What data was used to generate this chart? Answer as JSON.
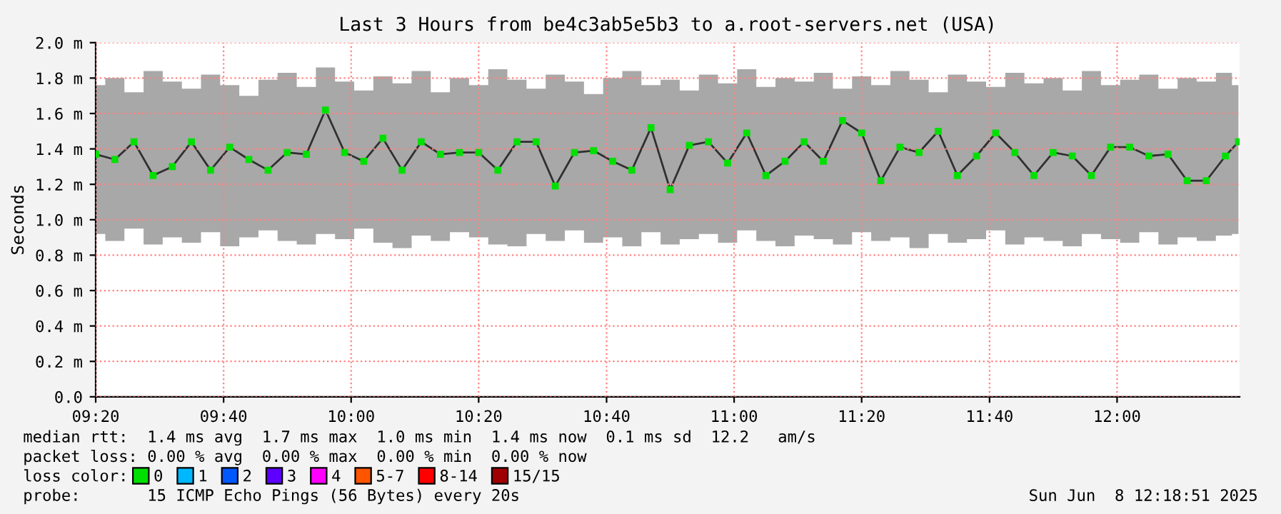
{
  "chart_data": {
    "type": "line",
    "title": "Last 3 Hours from be4c3ab5e5b3 to a.root-servers.net (USA)",
    "ylabel": "Seconds",
    "x": [
      9.333,
      9.383,
      9.433,
      9.483,
      9.533,
      9.583,
      9.633,
      9.683,
      9.733,
      9.783,
      9.833,
      9.883,
      9.933,
      9.983,
      10.033,
      10.083,
      10.133,
      10.183,
      10.233,
      10.283,
      10.333,
      10.383,
      10.433,
      10.483,
      10.533,
      10.583,
      10.633,
      10.683,
      10.733,
      10.783,
      10.833,
      10.883,
      10.933,
      10.983,
      11.033,
      11.083,
      11.133,
      11.183,
      11.233,
      11.283,
      11.333,
      11.383,
      11.433,
      11.483,
      11.533,
      11.583,
      11.633,
      11.683,
      11.733,
      11.783,
      11.833,
      11.883,
      11.933,
      11.983,
      12.033,
      12.083,
      12.133,
      12.183,
      12.233,
      12.283,
      12.317
    ],
    "series": [
      {
        "name": "0",
        "color": "#00e000",
        "values": [
          1.37,
          1.34,
          1.44,
          1.25,
          1.3,
          1.44,
          1.28,
          1.41,
          1.34,
          1.28,
          1.38,
          1.37,
          1.62,
          1.38,
          1.33,
          1.46,
          1.28,
          1.44,
          1.37,
          1.38,
          1.38,
          1.28,
          1.44,
          1.44,
          1.19,
          1.38,
          1.39,
          1.33,
          1.28,
          1.52,
          1.17,
          1.42,
          1.44,
          1.32,
          1.49,
          1.25,
          1.33,
          1.44,
          1.33,
          1.56,
          1.49,
          1.22,
          1.41,
          1.38,
          1.5,
          1.25,
          1.36,
          1.49,
          1.38,
          1.25,
          1.38,
          1.36,
          1.25,
          1.41,
          1.41,
          1.36,
          1.37,
          1.22,
          1.22,
          1.36,
          1.44
        ],
        "lower": [
          0.92,
          0.88,
          0.95,
          0.86,
          0.9,
          0.87,
          0.93,
          0.85,
          0.9,
          0.94,
          0.88,
          0.86,
          0.92,
          0.89,
          0.95,
          0.87,
          0.84,
          0.91,
          0.88,
          0.93,
          0.9,
          0.86,
          0.85,
          0.92,
          0.88,
          0.94,
          0.87,
          0.9,
          0.85,
          0.93,
          0.86,
          0.89,
          0.92,
          0.87,
          0.94,
          0.88,
          0.85,
          0.91,
          0.89,
          0.86,
          0.93,
          0.88,
          0.9,
          0.84,
          0.92,
          0.87,
          0.89,
          0.94,
          0.86,
          0.9,
          0.88,
          0.85,
          0.92,
          0.89,
          0.87,
          0.93,
          0.86,
          0.9,
          0.88,
          0.91,
          0.92
        ],
        "upper": [
          1.76,
          1.8,
          1.72,
          1.84,
          1.78,
          1.74,
          1.82,
          1.76,
          1.7,
          1.79,
          1.83,
          1.75,
          1.86,
          1.78,
          1.73,
          1.81,
          1.77,
          1.84,
          1.72,
          1.8,
          1.76,
          1.85,
          1.79,
          1.74,
          1.82,
          1.78,
          1.71,
          1.8,
          1.84,
          1.76,
          1.79,
          1.73,
          1.82,
          1.77,
          1.85,
          1.75,
          1.8,
          1.78,
          1.83,
          1.74,
          1.81,
          1.76,
          1.84,
          1.79,
          1.72,
          1.82,
          1.78,
          1.75,
          1.83,
          1.77,
          1.8,
          1.73,
          1.84,
          1.76,
          1.79,
          1.82,
          1.74,
          1.8,
          1.78,
          1.83,
          1.76
        ]
      },
      {
        "name": "1",
        "color": "#00b8ff",
        "values": [
          null,
          null,
          null,
          null,
          null,
          null,
          null,
          null,
          null,
          null,
          null,
          null,
          null,
          null,
          null,
          null,
          null,
          null,
          null,
          null,
          null,
          null,
          null,
          null,
          null,
          null,
          null,
          null,
          null,
          null,
          null,
          null,
          null,
          null,
          null,
          null,
          null,
          null,
          null,
          null,
          null,
          null,
          null,
          null,
          null,
          null,
          null,
          null,
          null,
          null,
          null,
          null,
          null,
          null,
          null,
          null,
          null,
          null,
          null,
          null,
          null
        ]
      },
      {
        "name": "2",
        "color": "#0059ff",
        "values": [
          null,
          null,
          null,
          null,
          null,
          null,
          null,
          null,
          null,
          null,
          null,
          null,
          null,
          null,
          null,
          null,
          null,
          null,
          null,
          null,
          null,
          null,
          null,
          null,
          null,
          null,
          null,
          null,
          null,
          null,
          null,
          null,
          null,
          null,
          null,
          null,
          null,
          null,
          null,
          null,
          null,
          null,
          null,
          null,
          null,
          null,
          null,
          null,
          null,
          null,
          null,
          null,
          null,
          null,
          null,
          null,
          null,
          null,
          null,
          null,
          null
        ]
      },
      {
        "name": "3",
        "color": "#5e00ff",
        "values": [
          null,
          null,
          null,
          null,
          null,
          null,
          null,
          null,
          null,
          null,
          null,
          null,
          null,
          null,
          null,
          null,
          null,
          null,
          null,
          null,
          null,
          null,
          null,
          null,
          null,
          null,
          null,
          null,
          null,
          null,
          null,
          null,
          null,
          null,
          null,
          null,
          null,
          null,
          null,
          null,
          null,
          null,
          null,
          null,
          null,
          null,
          null,
          null,
          null,
          null,
          null,
          null,
          null,
          null,
          null,
          null,
          null,
          null,
          null,
          null,
          null
        ]
      },
      {
        "name": "4",
        "color": "#ff00ff",
        "values": [
          null,
          null,
          null,
          null,
          null,
          null,
          null,
          null,
          null,
          null,
          null,
          null,
          null,
          null,
          null,
          null,
          null,
          null,
          null,
          null,
          null,
          null,
          null,
          null,
          null,
          null,
          null,
          null,
          null,
          null,
          null,
          null,
          null,
          null,
          null,
          null,
          null,
          null,
          null,
          null,
          null,
          null,
          null,
          null,
          null,
          null,
          null,
          null,
          null,
          null,
          null,
          null,
          null,
          null,
          null,
          null,
          null,
          null,
          null,
          null,
          null
        ]
      },
      {
        "name": "5-7",
        "color": "#ff5500",
        "values": [
          null,
          null,
          null,
          null,
          null,
          null,
          null,
          null,
          null,
          null,
          null,
          null,
          null,
          null,
          null,
          null,
          null,
          null,
          null,
          null,
          null,
          null,
          null,
          null,
          null,
          null,
          null,
          null,
          null,
          null,
          null,
          null,
          null,
          null,
          null,
          null,
          null,
          null,
          null,
          null,
          null,
          null,
          null,
          null,
          null,
          null,
          null,
          null,
          null,
          null,
          null,
          null,
          null,
          null,
          null,
          null,
          null,
          null,
          null,
          null,
          null
        ]
      },
      {
        "name": "8-14",
        "color": "#ff0000",
        "values": [
          null,
          null,
          null,
          null,
          null,
          null,
          null,
          null,
          null,
          null,
          null,
          null,
          null,
          null,
          null,
          null,
          null,
          null,
          null,
          null,
          null,
          null,
          null,
          null,
          null,
          null,
          null,
          null,
          null,
          null,
          null,
          null,
          null,
          null,
          null,
          null,
          null,
          null,
          null,
          null,
          null,
          null,
          null,
          null,
          null,
          null,
          null,
          null,
          null,
          null,
          null,
          null,
          null,
          null,
          null,
          null,
          null,
          null,
          null,
          null,
          null
        ]
      },
      {
        "name": "15/15",
        "color": "#a10000",
        "values": [
          null,
          null,
          null,
          null,
          null,
          null,
          null,
          null,
          null,
          null,
          null,
          null,
          null,
          null,
          null,
          null,
          null,
          null,
          null,
          null,
          null,
          null,
          null,
          null,
          null,
          null,
          null,
          null,
          null,
          null,
          null,
          null,
          null,
          null,
          null,
          null,
          null,
          null,
          null,
          null,
          null,
          null,
          null,
          null,
          null,
          null,
          null,
          null,
          null,
          null,
          null,
          null,
          null,
          null,
          null,
          null,
          null,
          null,
          null,
          null,
          null
        ]
      }
    ],
    "legend": "bottom",
    "legend_title": "loss color:",
    "xlim": [
      9.333,
      12.32
    ],
    "xticks": [
      {
        "value": 9.333,
        "label": "09:20"
      },
      {
        "value": 9.667,
        "label": "09:40"
      },
      {
        "value": 10,
        "label": "10:00"
      },
      {
        "value": 10.333,
        "label": "10:20"
      },
      {
        "value": 10.667,
        "label": "10:40"
      },
      {
        "value": 11,
        "label": "11:00"
      },
      {
        "value": 11.333,
        "label": "11:20"
      },
      {
        "value": 11.667,
        "label": "11:40"
      },
      {
        "value": 12,
        "label": "12:00"
      }
    ],
    "ylim": [
      0,
      2.0
    ],
    "yticks": [
      {
        "value": 0,
        "label": "0.0"
      },
      {
        "value": 0.2,
        "label": "0.2 m"
      },
      {
        "value": 0.4,
        "label": "0.4 m"
      },
      {
        "value": 0.6,
        "label": "0.6 m"
      },
      {
        "value": 0.8,
        "label": "0.8 m"
      },
      {
        "value": 1.0,
        "label": "1.0 m"
      },
      {
        "value": 1.2,
        "label": "1.2 m"
      },
      {
        "value": 1.4,
        "label": "1.4 m"
      },
      {
        "value": 1.6,
        "label": "1.6 m"
      },
      {
        "value": 1.8,
        "label": "1.8 m"
      },
      {
        "value": 2.0,
        "label": "2.0 m"
      }
    ],
    "grid": true,
    "marker": "square",
    "line_style": "solid",
    "annotations": [
      "median rtt:  1.4 ms avg  1.7 ms max  1.0 ms min  1.4 ms now  0.1 ms sd  12.2   am/s",
      "packet loss: 0.00 % avg  0.00 % max  0.00 % min  0.00 % now",
      "probe:       15 ICMP Echo Pings (56 Bytes) every 20s",
      "Sun Jun  8 12:18:51 2025"
    ]
  }
}
